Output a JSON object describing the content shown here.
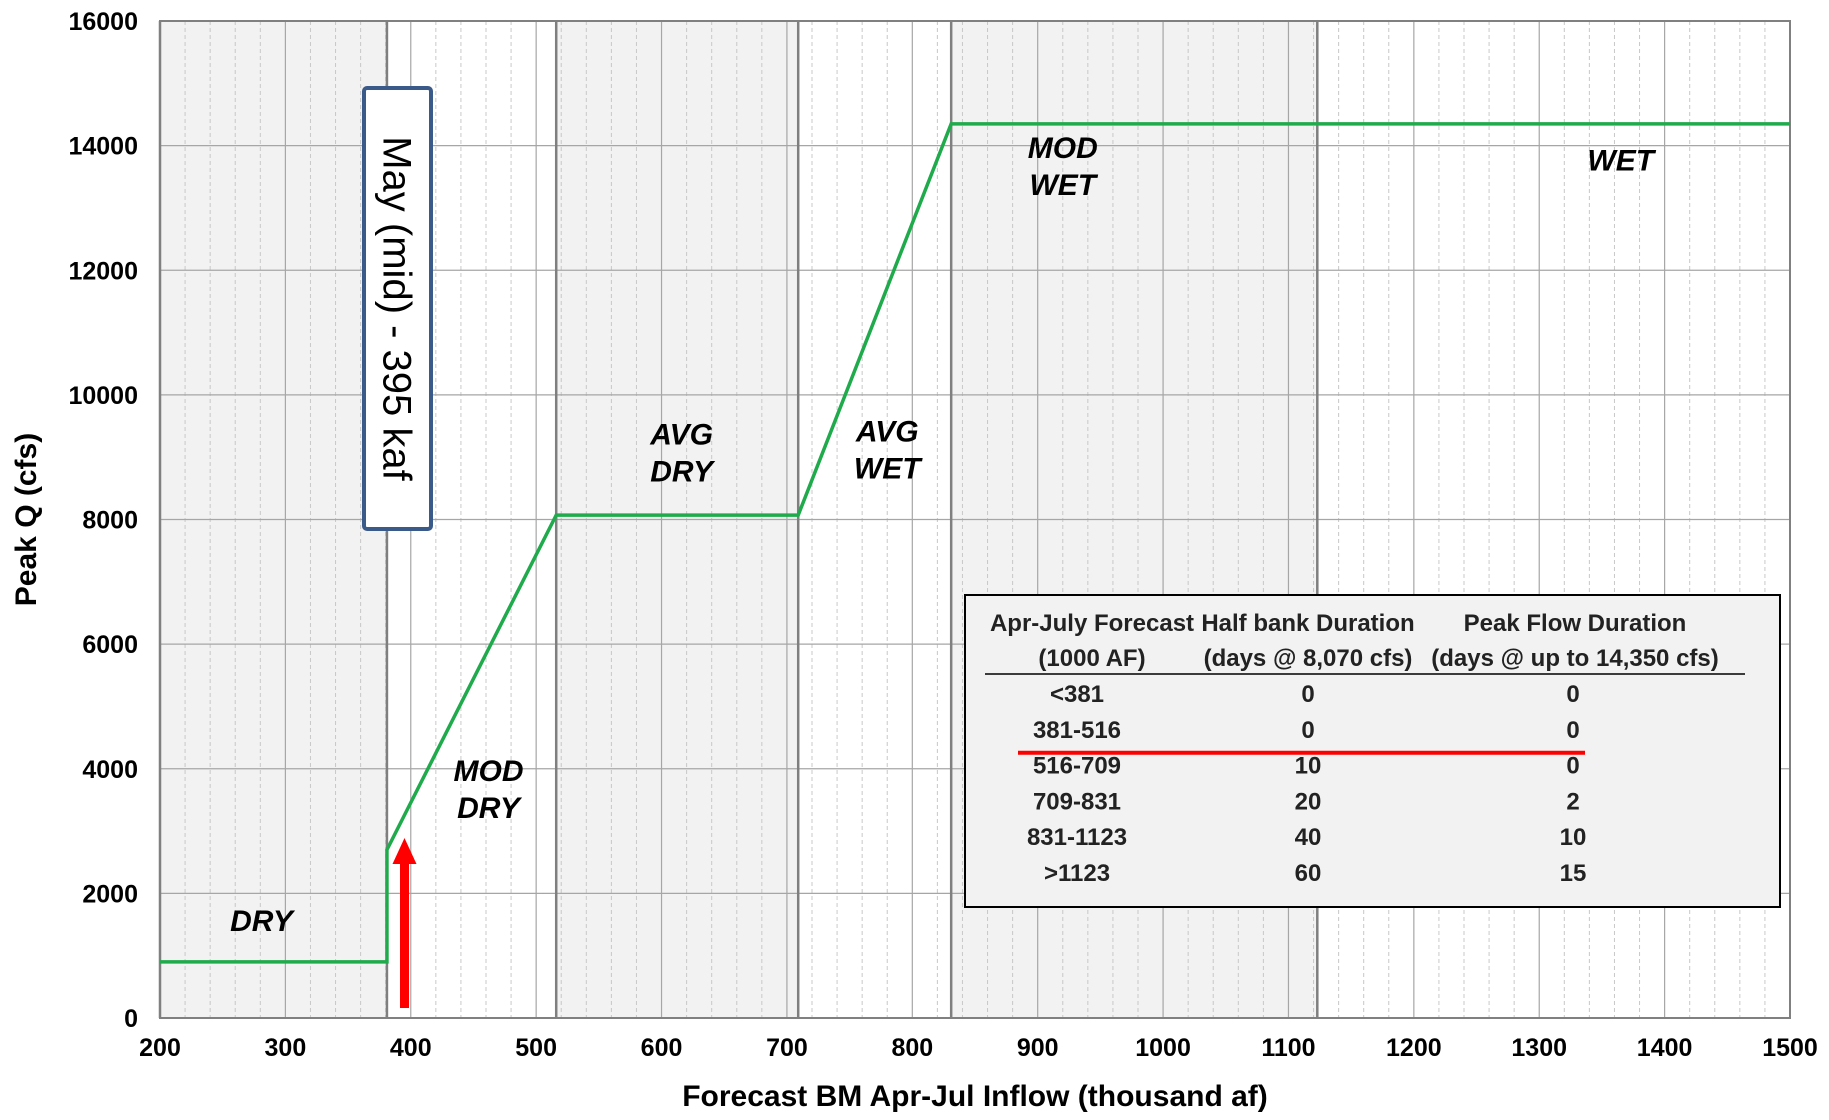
{
  "chart_data": {
    "type": "line",
    "xlabel": "Forecast BM Apr-Jul Inflow (thousand af)",
    "ylabel": "Peak Q (cfs)",
    "xlim": [
      200,
      1500
    ],
    "ylim": [
      0,
      16000
    ],
    "x_major_ticks": [
      200,
      300,
      400,
      500,
      600,
      700,
      800,
      900,
      1000,
      1100,
      1200,
      1300,
      1400,
      1500
    ],
    "x_minor_step": 20,
    "y_ticks": [
      0,
      2000,
      4000,
      6000,
      8000,
      10000,
      12000,
      14000,
      16000
    ],
    "grid": true,
    "series": [
      {
        "color": "#1faa4b",
        "points": [
          [
            200,
            900
          ],
          [
            381,
            900
          ],
          [
            381,
            2700
          ],
          [
            516,
            8070
          ],
          [
            709,
            8070
          ],
          [
            831,
            14350
          ],
          [
            1500,
            14350
          ]
        ]
      }
    ],
    "zones": [
      {
        "label": [
          "DRY"
        ],
        "x_start": 200,
        "x_end": 381,
        "shaded": true
      },
      {
        "label": [
          "MOD",
          "DRY"
        ],
        "x_start": 381,
        "x_end": 516,
        "shaded": false
      },
      {
        "label": [
          "AVG",
          "DRY"
        ],
        "x_start": 516,
        "x_end": 709,
        "shaded": true
      },
      {
        "label": [
          "AVG",
          "WET"
        ],
        "x_start": 709,
        "x_end": 831,
        "shaded": false
      },
      {
        "label": [
          "MOD",
          "WET"
        ],
        "x_start": 831,
        "x_end": 1123,
        "shaded": true
      },
      {
        "label": [
          "WET"
        ],
        "x_start": 1123,
        "x_end": 1500,
        "shaded": false
      }
    ],
    "annotations": {
      "callout": "May (mid) - 395 kaf",
      "arrow_x": 395,
      "arrow_color": "#ff0000"
    },
    "table": {
      "headers": [
        [
          "Apr-July Forecast",
          "(1000 AF)"
        ],
        [
          "Half bank Duration",
          "(days @ 8,070 cfs)"
        ],
        [
          "Peak Flow Duration",
          "(days @ up to 14,350 cfs)"
        ]
      ],
      "rows": [
        [
          "<381",
          "0",
          "0"
        ],
        [
          "381-516",
          "0",
          "0"
        ],
        [
          "516-709",
          "10",
          "0"
        ],
        [
          "709-831",
          "20",
          "2"
        ],
        [
          "831-1123",
          "40",
          "10"
        ],
        [
          ">1123",
          "60",
          "15"
        ]
      ],
      "highlight_after_row": 1,
      "highlight_color": "#ff0000"
    },
    "colors": {
      "zone_shade": "#f2f2f2",
      "grid_major": "#a6a6a6",
      "grid_minor": "#c8c8c8",
      "callout_border": "#3a5a8a"
    }
  }
}
